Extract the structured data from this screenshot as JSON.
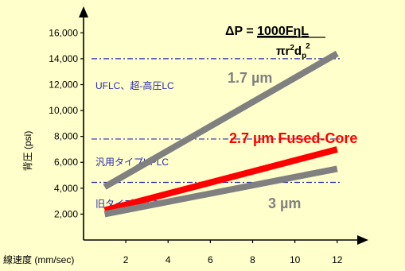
{
  "colors": {
    "background": "#ffffcc",
    "axis": "#000000",
    "reference_line": "#2a2ab0",
    "reference_label": "#2a2ab0",
    "series_gray": "#808080",
    "series_red": "#ff0000",
    "text": "#000000"
  },
  "formula": {
    "lhs": "ΔP = ",
    "numerator": "1000FηL",
    "den_pi": "π",
    "den_r": "r",
    "den_r_exp": "2",
    "den_d": "d",
    "den_d_sub": "p",
    "den_d_exp": "2"
  },
  "chart_data": {
    "type": "line",
    "xlabel": "線速度 (mm/sec)",
    "ylabel": "背圧 (psi)",
    "xlim": [
      0,
      12.8
    ],
    "ylim": [
      0,
      17800
    ],
    "x_ticks": [
      2,
      4,
      6,
      8,
      10,
      12
    ],
    "y_ticks": [
      2000,
      4000,
      6000,
      8000,
      10000,
      12000,
      14000,
      16000
    ],
    "y_tick_labels": [
      "2,000",
      "4,000",
      "6,000",
      "8,000",
      "10,000",
      "12,000",
      "14,000",
      "16,000"
    ],
    "grid": false,
    "series": [
      {
        "name": "1.7 µm",
        "color": "#808080",
        "x": [
          1,
          12
        ],
        "y": [
          4100,
          14400
        ]
      },
      {
        "name": "2.7 µm Fused-Core",
        "color": "#ff0000",
        "x": [
          1,
          12
        ],
        "y": [
          2300,
          7000
        ]
      },
      {
        "name": "3 µm",
        "color": "#808080",
        "x": [
          1,
          12
        ],
        "y": [
          2000,
          5500
        ]
      }
    ],
    "reference_lines": [
      {
        "y": 14000,
        "label": "UFLC、超-高圧LC"
      },
      {
        "y": 7800,
        "label": "汎用タイプHPLC"
      },
      {
        "y": 4450,
        "label": "旧タイプHPLC"
      }
    ]
  }
}
